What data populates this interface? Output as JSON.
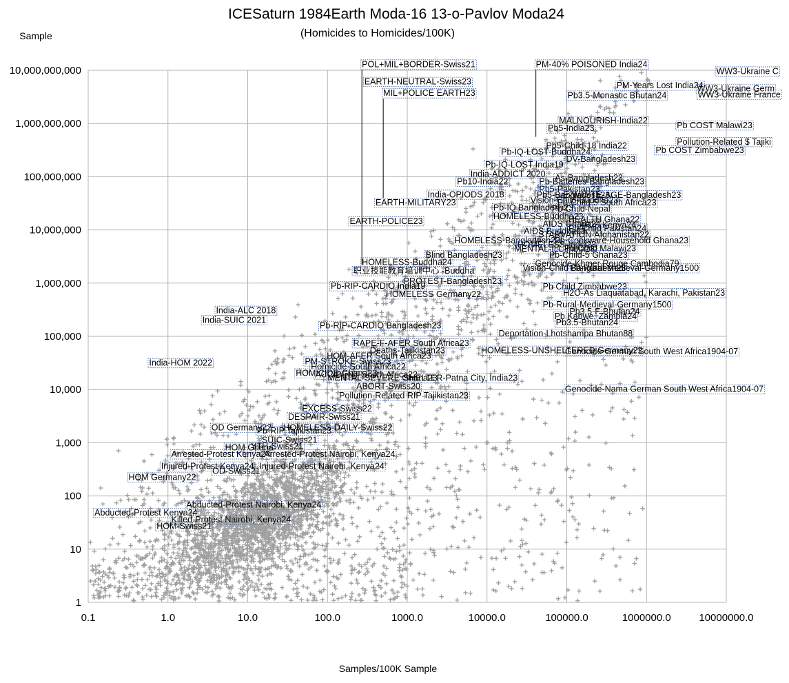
{
  "chart_data": {
    "type": "scatter",
    "title": "ICESaturn 1984Earth Moda-16 13-o-Pavlov Moda24",
    "subtitle": "(Homicides to Homicides/100K)",
    "ylabel": "Sample",
    "xlabel": "Samples/100K Sample",
    "x_scale": "log",
    "y_scale": "log",
    "xlim": [
      0.1,
      10000000
    ],
    "ylim": [
      1,
      10000000000
    ],
    "grid": true,
    "x_ticks": [
      "0.1",
      "1.0",
      "10.0",
      "100.0",
      "1000.0",
      "10000.0",
      "100000.0",
      "1000000.0",
      "10000000.0"
    ],
    "x_tick_values": [
      0.1,
      1,
      10,
      100,
      1000,
      10000,
      100000,
      1000000,
      10000000
    ],
    "y_ticks": [
      "1",
      "10",
      "100",
      "1,000",
      "10,000",
      "100,000",
      "1,000,000",
      "10,000,000",
      "100,000,000",
      "1,000,000,000",
      "10,000,000,000"
    ],
    "y_tick_values": [
      1,
      10,
      100,
      1000,
      10000,
      100000,
      1000000,
      10000000,
      100000000,
      1000000000,
      10000000000
    ],
    "point_color": "#a0a0a0",
    "label_border_color": "#3a5fa8",
    "labels": [
      {
        "text": "POL+MIL+BORDER-Swiss21",
        "x": 270,
        "y": 11500000000
      },
      {
        "text": "PM-40% POISONED India24",
        "x": 41000,
        "y": 11500000000
      },
      {
        "text": "WW3-Ukraine C",
        "x": 7500000,
        "y": 8500000000
      },
      {
        "text": "EARTH-NEUTRAL-Swiss23",
        "x": 290,
        "y": 5400000000
      },
      {
        "text": "PM-Years Lost India24",
        "x": 420000,
        "y": 4600000000
      },
      {
        "text": "WW3-Ukraine Germ",
        "x": 4300000,
        "y": 4000000000
      },
      {
        "text": "MIL+POLICE EARTH23",
        "x": 500,
        "y": 3300000000
      },
      {
        "text": "WW3-Ukraine France",
        "x": 4400000,
        "y": 3100000000
      },
      {
        "text": "MALNOURISH-India22",
        "x": 80000,
        "y": 1000000000
      },
      {
        "text": "Pb COST Malawi23",
        "x": 2400000,
        "y": 820000000
      },
      {
        "text": "Pb5-India23",
        "x": 58000,
        "y": 720000000
      },
      {
        "text": "Pollution-Related $ Tajiki",
        "x": 2400000,
        "y": 400000000
      },
      {
        "text": "Pb5-Child-18 India22",
        "x": 55000,
        "y": 340000000
      },
      {
        "text": "Pb COST Zimbabwe23",
        "x": 1300000,
        "y": 280000000
      },
      {
        "text": "Pb-IQ-LOST-Buddha24",
        "x": 15000,
        "y": 260000000
      },
      {
        "text": "DV-Bangladesh23",
        "x": 98000,
        "y": 190000000
      },
      {
        "text": "Pb-IQ-LOST India19",
        "x": 9500,
        "y": 150000000
      },
      {
        "text": "India-ADDICT 2020",
        "x": 6200,
        "y": 100000000
      },
      {
        "text": "As-Bangladesh23",
        "x": 71000,
        "y": 85000000
      },
      {
        "text": "Pb10-India22",
        "x": 4200,
        "y": 72000000
      },
      {
        "text": "Pb-Batteries-Bangladesh23",
        "x": 45000,
        "y": 72000000
      },
      {
        "text": "Pb5-Pakistan23",
        "x": 45000,
        "y": 52000000
      },
      {
        "text": "India-OPIODS 2018",
        "x": 1800,
        "y": 41000000
      },
      {
        "text": "Pb5-Bangladesh23",
        "x": 42000,
        "y": 40000000
      },
      {
        "text": "E-WASTE-AGE-Bangladesh23",
        "x": 90000,
        "y": 40000000
      },
      {
        "text": "Vision-Child-Buddha23",
        "x": 35000,
        "y": 32000000
      },
      {
        "text": "Pb-Child-5 South Africa23",
        "x": 76000,
        "y": 29000000
      },
      {
        "text": "EARTH-MILITARY23",
        "x": 400,
        "y": 29000000
      },
      {
        "text": "Pb-IQ Bangladesh23",
        "x": 12000,
        "y": 23000000
      },
      {
        "text": "Pb-Child-Nepal",
        "x": 65000,
        "y": 22000000
      },
      {
        "text": "HOMELESS-Buddha23",
        "x": 12000,
        "y": 16000000
      },
      {
        "text": "HEALTH Ghana22",
        "x": 105000,
        "y": 14000000
      },
      {
        "text": "EARTH-POLICE23",
        "x": 190,
        "y": 13000000
      },
      {
        "text": "AIDS Ghana24",
        "x": 50000,
        "y": 11500000
      },
      {
        "text": "AIDS Kenya24",
        "x": 145000,
        "y": 11000000
      },
      {
        "text": "Pb-Child Pakistan24",
        "x": 105000,
        "y": 9500000
      },
      {
        "text": "AIDS Buddha23",
        "x": 29000,
        "y": 8400000
      },
      {
        "text": "STARVATION-Afghanistan22",
        "x": 44000,
        "y": 7200000
      },
      {
        "text": "HOMELESS-Bangladesh23",
        "x": 3900,
        "y": 5600000
      },
      {
        "text": "Pb-Cookware-Household Ghana23",
        "x": 70000,
        "y": 5600000
      },
      {
        "text": "HOMELESS-India23",
        "x": 24000,
        "y": 4700000
      },
      {
        "text": "Pb-Child Malawi23",
        "x": 93000,
        "y": 4000000
      },
      {
        "text": "MENTAL-ILL-India23",
        "x": 22000,
        "y": 3900000
      },
      {
        "text": "Blind Bangladesh23",
        "x": 1700,
        "y": 3000000
      },
      {
        "text": "Pb-Child-5 Ghana23",
        "x": 60000,
        "y": 3000000
      },
      {
        "text": "HOMELESS-Buddha24",
        "x": 270,
        "y": 2200000
      },
      {
        "text": "Genocide-Khmer Rouge Cambodia79",
        "x": 40000,
        "y": 2050000
      },
      {
        "text": "Vision-Child Bangladesh23",
        "x": 28000,
        "y": 1700000
      },
      {
        "text": "Pb-Rural-Medieval-Germany1500",
        "x": 110000,
        "y": 1700000
      },
      {
        "text": "职业技能教育培训中心 -Buddha",
        "x": 210,
        "y": 1500000
      },
      {
        "text": "PROTEST-Bangladesh23",
        "x": 900,
        "y": 970000
      },
      {
        "text": "Pb-RIP-CARDIO India19",
        "x": 110,
        "y": 780000
      },
      {
        "text": "Pb Child Zimbabwe23",
        "x": 50000,
        "y": 760000
      },
      {
        "text": "HOMELESS Germany22",
        "x": 540,
        "y": 550000
      },
      {
        "text": "H2O-As Liaquatabad, Karachi, Pakistan23",
        "x": 90000,
        "y": 580000
      },
      {
        "text": "Pb-Rural-Medieval-Germany1500",
        "x": 50000,
        "y": 350000
      },
      {
        "text": "India-ALC 2018",
        "x": 4,
        "y": 270000
      },
      {
        "text": "Pb3.5-F-Bhutan24",
        "x": 108000,
        "y": 260000
      },
      {
        "text": "India-SUIC 2021",
        "x": 2.7,
        "y": 180000
      },
      {
        "text": "Pb Kabwe, Zambia24",
        "x": 70000,
        "y": 210000
      },
      {
        "text": "Pb-RIP-CARDIO Bangladesh23",
        "x": 80,
        "y": 140000
      },
      {
        "text": "Pb3.5-Bhutan24",
        "x": 73000,
        "y": 160000
      },
      {
        "text": "Deportation-Lhotshampa Bhutan88",
        "x": 14000,
        "y": 100000
      },
      {
        "text": "RAPE-F-AFER South Africa23",
        "x": 210,
        "y": 66000
      },
      {
        "text": "Deaths-Tajikistan23",
        "x": 340,
        "y": 48000
      },
      {
        "text": "HOMELESS-UNSHELTERED Germany22",
        "x": 8400,
        "y": 48000
      },
      {
        "text": "Genocide-German South West Africa1904-07",
        "x": 95000,
        "y": 46000
      },
      {
        "text": "HOM-AFER South Africa23",
        "x": 98,
        "y": 38000
      },
      {
        "text": "India-HOM 2022",
        "x": 0.58,
        "y": 28000
      },
      {
        "text": "PM-STROKE-Swiss23",
        "x": 52,
        "y": 30000
      },
      {
        "text": "Homicide-South Africa22",
        "x": 62,
        "y": 24000
      },
      {
        "text": "HOMICIDE-Ghana23",
        "x": 40,
        "y": 18000
      },
      {
        "text": "ACCIDENT-South Africa22",
        "x": 70,
        "y": 17000
      },
      {
        "text": "MENTAL-SEVERE Ghana23",
        "x": 100,
        "y": 14500
      },
      {
        "text": "SHELTER-Patna City, India23",
        "x": 900,
        "y": 14500
      },
      {
        "text": "ABORT-Swiss20",
        "x": 230,
        "y": 10200
      },
      {
        "text": "Genocide-Nama German South West Africa1904-07",
        "x": 95000,
        "y": 9000
      },
      {
        "text": "Pollution-Related RIP Tajikistan23",
        "x": 140,
        "y": 6800
      },
      {
        "text": "EXCESS-Swiss22",
        "x": 48,
        "y": 3900
      },
      {
        "text": "Pb3.5-Monastic Bhutan24",
        "x": 102000,
        "y": 3000000000
      },
      {
        "text": "DESPAIR-Swiss21",
        "x": 32,
        "y": 2700
      },
      {
        "text": "HOMELESS-DAILY-Swiss22",
        "x": 28,
        "y": 1700
      },
      {
        "text": "OD Germany22",
        "x": 3.5,
        "y": 1700
      },
      {
        "text": "Pb-RIP Tajikistan23",
        "x": 13,
        "y": 1500
      },
      {
        "text": "HOM Germany22",
        "x": 0.32,
        "y": 200
      },
      {
        "text": "SUIC-Swiss21",
        "x": 15,
        "y": 1000
      },
      {
        "text": "HOM Ghana",
        "x": 5.2,
        "y": 720
      },
      {
        "text": "YTH-Swiss21",
        "x": 11,
        "y": 760
      },
      {
        "text": "Arrested-Protest Kenya24",
        "x": 1.1,
        "y": 540
      },
      {
        "text": "Arrested-Protest Nairobi, Kenya24",
        "x": 16,
        "y": 540
      },
      {
        "text": "Injured-Protest Kenya24",
        "x": 0.82,
        "y": 320
      },
      {
        "text": "Injured-Protest Nairobi, Kenya24",
        "x": 14,
        "y": 320
      },
      {
        "text": "OD-Swiss21",
        "x": 3.6,
        "y": 260
      },
      {
        "text": "Abducted-Protest Nairobi, Kenya24",
        "x": 1.7,
        "y": 60
      },
      {
        "text": "Abducted-Protest Kenya24",
        "x": 0.12,
        "y": 43
      },
      {
        "text": "Killed-Protest Nairobi, Kenya24",
        "x": 1.1,
        "y": 32
      },
      {
        "text": "HOM-Swiss21",
        "x": 0.72,
        "y": 24
      }
    ]
  }
}
